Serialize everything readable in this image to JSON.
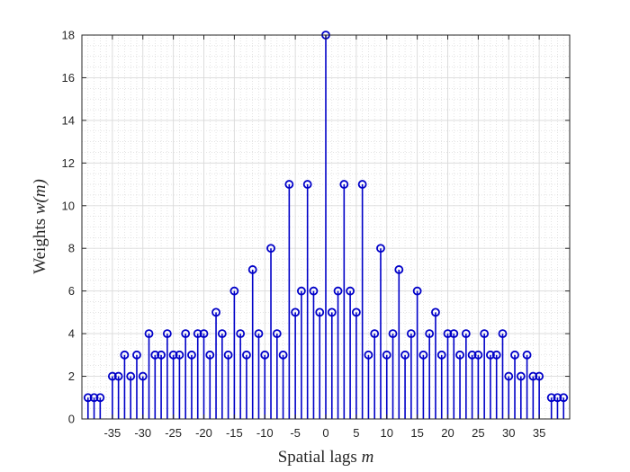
{
  "chart_data": {
    "type": "stem",
    "title": "",
    "xlabel": "Spatial lags",
    "xlabel_var": "m",
    "ylabel": "Weights",
    "ylabel_var": "w(m)",
    "xlim": [
      -40,
      40
    ],
    "ylim": [
      0,
      18
    ],
    "x_ticks": [
      -35,
      -30,
      -25,
      -20,
      -15,
      -10,
      -5,
      0,
      5,
      10,
      15,
      20,
      25,
      30,
      35
    ],
    "y_ticks": [
      0,
      2,
      4,
      6,
      8,
      10,
      12,
      14,
      16,
      18
    ],
    "grid": true,
    "minor_grid": true,
    "marker": "circle",
    "color": "#0000c8",
    "x": [
      -39,
      -38,
      -37,
      -35,
      -34,
      -33,
      -32,
      -31,
      -30,
      -29,
      -28,
      -27,
      -26,
      -25,
      -24,
      -23,
      -22,
      -21,
      -20,
      -19,
      -18,
      -17,
      -16,
      -15,
      -14,
      -13,
      -12,
      -11,
      -10,
      -9,
      -8,
      -7,
      -6,
      -5,
      -4,
      -3,
      -2,
      -1,
      0,
      1,
      2,
      3,
      4,
      5,
      6,
      7,
      8,
      9,
      10,
      11,
      12,
      13,
      14,
      15,
      16,
      17,
      18,
      19,
      20,
      21,
      22,
      23,
      24,
      25,
      26,
      27,
      28,
      29,
      30,
      31,
      32,
      33,
      34,
      35,
      37,
      38,
      39
    ],
    "values": [
      1,
      1,
      1,
      2,
      2,
      3,
      2,
      3,
      2,
      4,
      3,
      3,
      4,
      3,
      3,
      4,
      3,
      4,
      4,
      3,
      5,
      4,
      3,
      6,
      4,
      3,
      7,
      4,
      3,
      8,
      4,
      3,
      11,
      5,
      6,
      11,
      6,
      5,
      18,
      5,
      6,
      11,
      6,
      5,
      11,
      3,
      4,
      8,
      3,
      4,
      7,
      3,
      4,
      6,
      3,
      4,
      5,
      3,
      4,
      4,
      3,
      4,
      3,
      3,
      4,
      3,
      3,
      4,
      2,
      3,
      2,
      3,
      2,
      2,
      1,
      1,
      1
    ]
  }
}
